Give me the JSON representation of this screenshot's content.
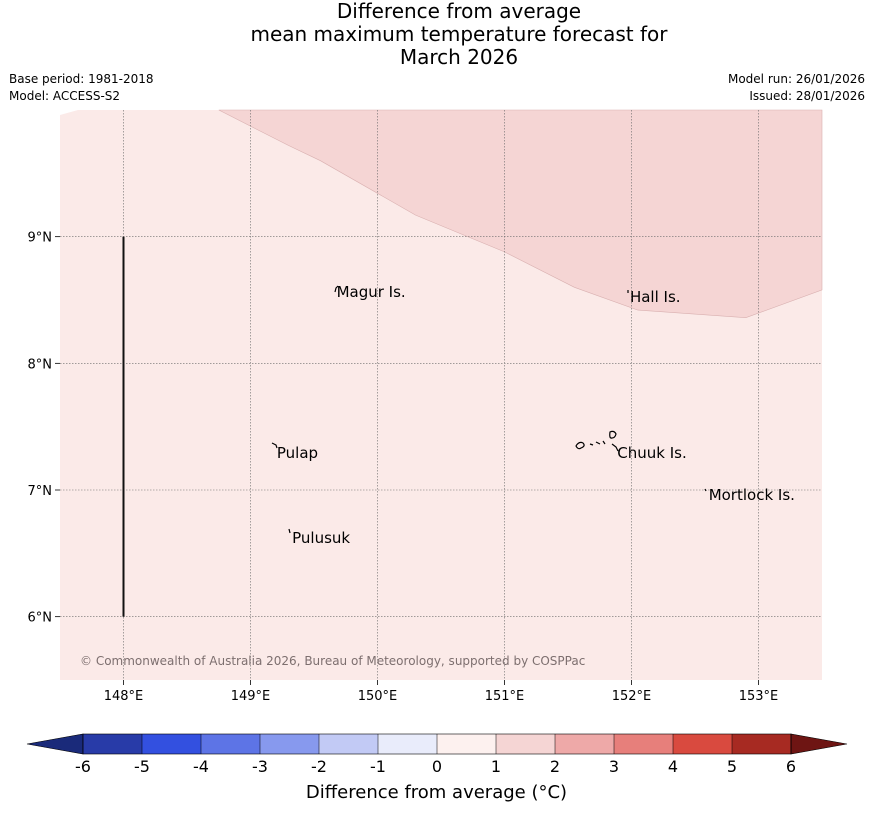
{
  "title": {
    "line1": "Difference from average",
    "line2": "mean maximum temperature forecast for",
    "line3": "March 2026"
  },
  "meta": {
    "base_period": "Base period: 1981-2018",
    "model": "Model: ACCESS-S2",
    "model_run": "Model run: 26/01/2026",
    "issued": "Issued: 28/01/2026"
  },
  "map": {
    "extent": {
      "lon_min": 147.5,
      "lon_max": 153.5,
      "lat_min": 5.5,
      "lat_max": 10.0
    },
    "lon_ticks": [
      {
        "value": 148,
        "label": "148°E"
      },
      {
        "value": 149,
        "label": "149°E"
      },
      {
        "value": 150,
        "label": "150°E"
      },
      {
        "value": 151,
        "label": "151°E"
      },
      {
        "value": 152,
        "label": "152°E"
      },
      {
        "value": 153,
        "label": "153°E"
      }
    ],
    "lat_ticks": [
      {
        "value": 9,
        "label": "9°N"
      },
      {
        "value": 8,
        "label": "8°N"
      },
      {
        "value": 7,
        "label": "7°N"
      },
      {
        "value": 6,
        "label": "6°N"
      }
    ],
    "background_category": "0 to 1",
    "background_color": "#fbeae8",
    "warm_region": {
      "category": "1 to 2",
      "color": "#f5d5d4",
      "boundary": [
        {
          "lon": 148.75,
          "lat": 10.0
        },
        {
          "lon": 149.3,
          "lat": 9.72
        },
        {
          "lon": 149.55,
          "lat": 9.6
        },
        {
          "lon": 150.3,
          "lat": 9.17
        },
        {
          "lon": 151.0,
          "lat": 8.88
        },
        {
          "lon": 151.55,
          "lat": 8.6
        },
        {
          "lon": 152.05,
          "lat": 8.42
        },
        {
          "lon": 152.9,
          "lat": 8.36
        },
        {
          "lon": 153.5,
          "lat": 8.58
        }
      ]
    },
    "meridian_line": {
      "lon": 148.0,
      "lat_from": 6.0,
      "lat_to": 9.0
    },
    "places": [
      {
        "name": "Magur Is.",
        "lon": 149.67,
        "lat": 8.57
      },
      {
        "name": "Hall Is.",
        "lon": 151.98,
        "lat": 8.53
      },
      {
        "name": "Pulap",
        "lon": 149.2,
        "lat": 7.3
      },
      {
        "name": "Chuuk Is.",
        "lon": 151.88,
        "lat": 7.3
      },
      {
        "name": "Mortlock Is.",
        "lon": 152.6,
        "lat": 6.97
      },
      {
        "name": "Pulusuk",
        "lon": 149.32,
        "lat": 6.63
      }
    ],
    "copyright": "© Commonwealth of Australia 2026, Bureau of Meteorology, supported by COSPPac"
  },
  "colorbar": {
    "ticks": [
      "-6",
      "-5",
      "-4",
      "-3",
      "-2",
      "-1",
      "0",
      "1",
      "2",
      "3",
      "4",
      "5",
      "6"
    ],
    "under_color": "#1a2a7a",
    "colors": [
      "#283ba8",
      "#3350e0",
      "#5d74e6",
      "#8799ee",
      "#c2caf5",
      "#e9ecfb",
      "#fdf1ef",
      "#f5d5d4",
      "#eea9a8",
      "#e77f7b",
      "#d94a3f",
      "#a72a22"
    ],
    "over_color": "#6e1513",
    "label": "Difference from average (°C)"
  }
}
